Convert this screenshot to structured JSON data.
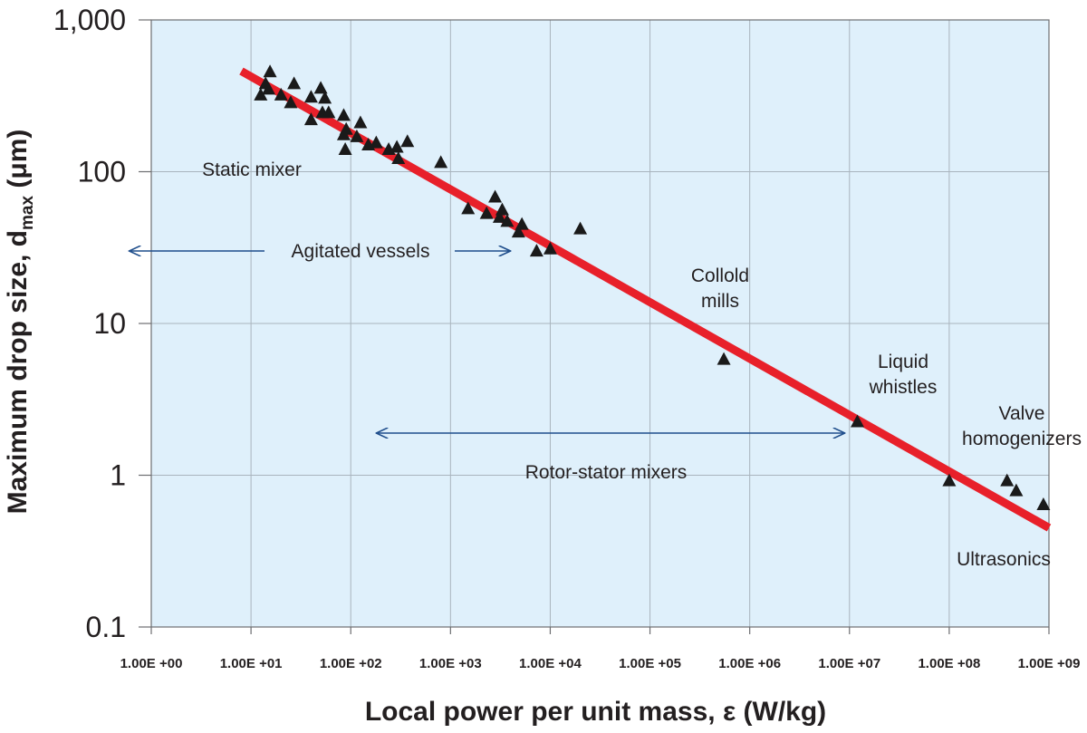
{
  "chart_data": {
    "type": "scatter",
    "title": "",
    "xlabel": "Local power per unit mass, ε (W/kg)",
    "ylabel": {
      "main": "Maximum drop size, d",
      "sub": "max",
      "unit": " (μm)"
    },
    "xscale": "log",
    "yscale": "log",
    "xlim": [
      1,
      1000000000
    ],
    "ylim": [
      0.1,
      1000
    ],
    "xticks": [
      {
        "value": 1,
        "label": "1.00E +00"
      },
      {
        "value": 10,
        "label": "1.00E +01"
      },
      {
        "value": 100,
        "label": "1.00E +02"
      },
      {
        "value": 1000,
        "label": "1.00E +03"
      },
      {
        "value": 10000,
        "label": "1.00E +04"
      },
      {
        "value": 100000,
        "label": "1.00E +05"
      },
      {
        "value": 1000000,
        "label": "1.00E +06"
      },
      {
        "value": 10000000,
        "label": "1.00E +07"
      },
      {
        "value": 100000000,
        "label": "1.00E +08"
      },
      {
        "value": 1000000000,
        "label": "1.00E +09"
      }
    ],
    "yticks": [
      {
        "value": 0.1,
        "label": "0.1"
      },
      {
        "value": 1,
        "label": "1"
      },
      {
        "value": 10,
        "label": "10"
      },
      {
        "value": 100,
        "label": "100"
      },
      {
        "value": 1000,
        "label": "1,000"
      }
    ],
    "grid": true,
    "background": "#dff0fb",
    "grid_color": "#a9b4bd",
    "marker_color": "#1a1a1a",
    "fit_line": {
      "color": "#e8202a",
      "from": [
        8,
        460
      ],
      "to": [
        1000000000,
        0.45
      ]
    },
    "points": [
      [
        12.5,
        320
      ],
      [
        14,
        380
      ],
      [
        15.5,
        455
      ],
      [
        15,
        350
      ],
      [
        20,
        320
      ],
      [
        25,
        285
      ],
      [
        27,
        380
      ],
      [
        40,
        220
      ],
      [
        40,
        310
      ],
      [
        50,
        355
      ],
      [
        52,
        245
      ],
      [
        55,
        305
      ],
      [
        60,
        245
      ],
      [
        85,
        235
      ],
      [
        85,
        175
      ],
      [
        88,
        140
      ],
      [
        90,
        190
      ],
      [
        115,
        170
      ],
      [
        125,
        210
      ],
      [
        150,
        150
      ],
      [
        180,
        155
      ],
      [
        240,
        140
      ],
      [
        290,
        145
      ],
      [
        300,
        122
      ],
      [
        370,
        158
      ],
      [
        800,
        115
      ],
      [
        1500,
        57
      ],
      [
        2300,
        53
      ],
      [
        2800,
        68
      ],
      [
        3100,
        50
      ],
      [
        3300,
        56
      ],
      [
        3700,
        47
      ],
      [
        4800,
        40
      ],
      [
        5200,
        45
      ],
      [
        7300,
        30
      ],
      [
        10000,
        31
      ],
      [
        20000,
        42
      ],
      [
        550000,
        5.8
      ],
      [
        12000000,
        2.25
      ],
      [
        100000000,
        0.92
      ],
      [
        380000000,
        0.92
      ],
      [
        470000000,
        0.79
      ],
      [
        880000000,
        0.64
      ]
    ],
    "annotations": [
      {
        "label": "Static mixer",
        "lines": [
          "Static mixer"
        ]
      },
      {
        "label": "Agitated vessels",
        "lines": [
          "Agitated vessels"
        ],
        "range": [
          0.6,
          4000
        ]
      },
      {
        "label": "Collold mills",
        "lines": [
          "Collold",
          "mills"
        ]
      },
      {
        "label": "Liquid whistles",
        "lines": [
          "Liquid",
          "whistles"
        ]
      },
      {
        "label": "Valve homogenizers",
        "lines": [
          "Valve",
          "homogenizers"
        ]
      },
      {
        "label": "Rotor-stator mixers",
        "lines": [
          "Rotor-stator mixers"
        ],
        "range": [
          180,
          9000000
        ]
      },
      {
        "label": "Ultrasonics",
        "lines": [
          "Ultrasonics"
        ]
      }
    ],
    "arrow_color": "#1f4e8c"
  }
}
